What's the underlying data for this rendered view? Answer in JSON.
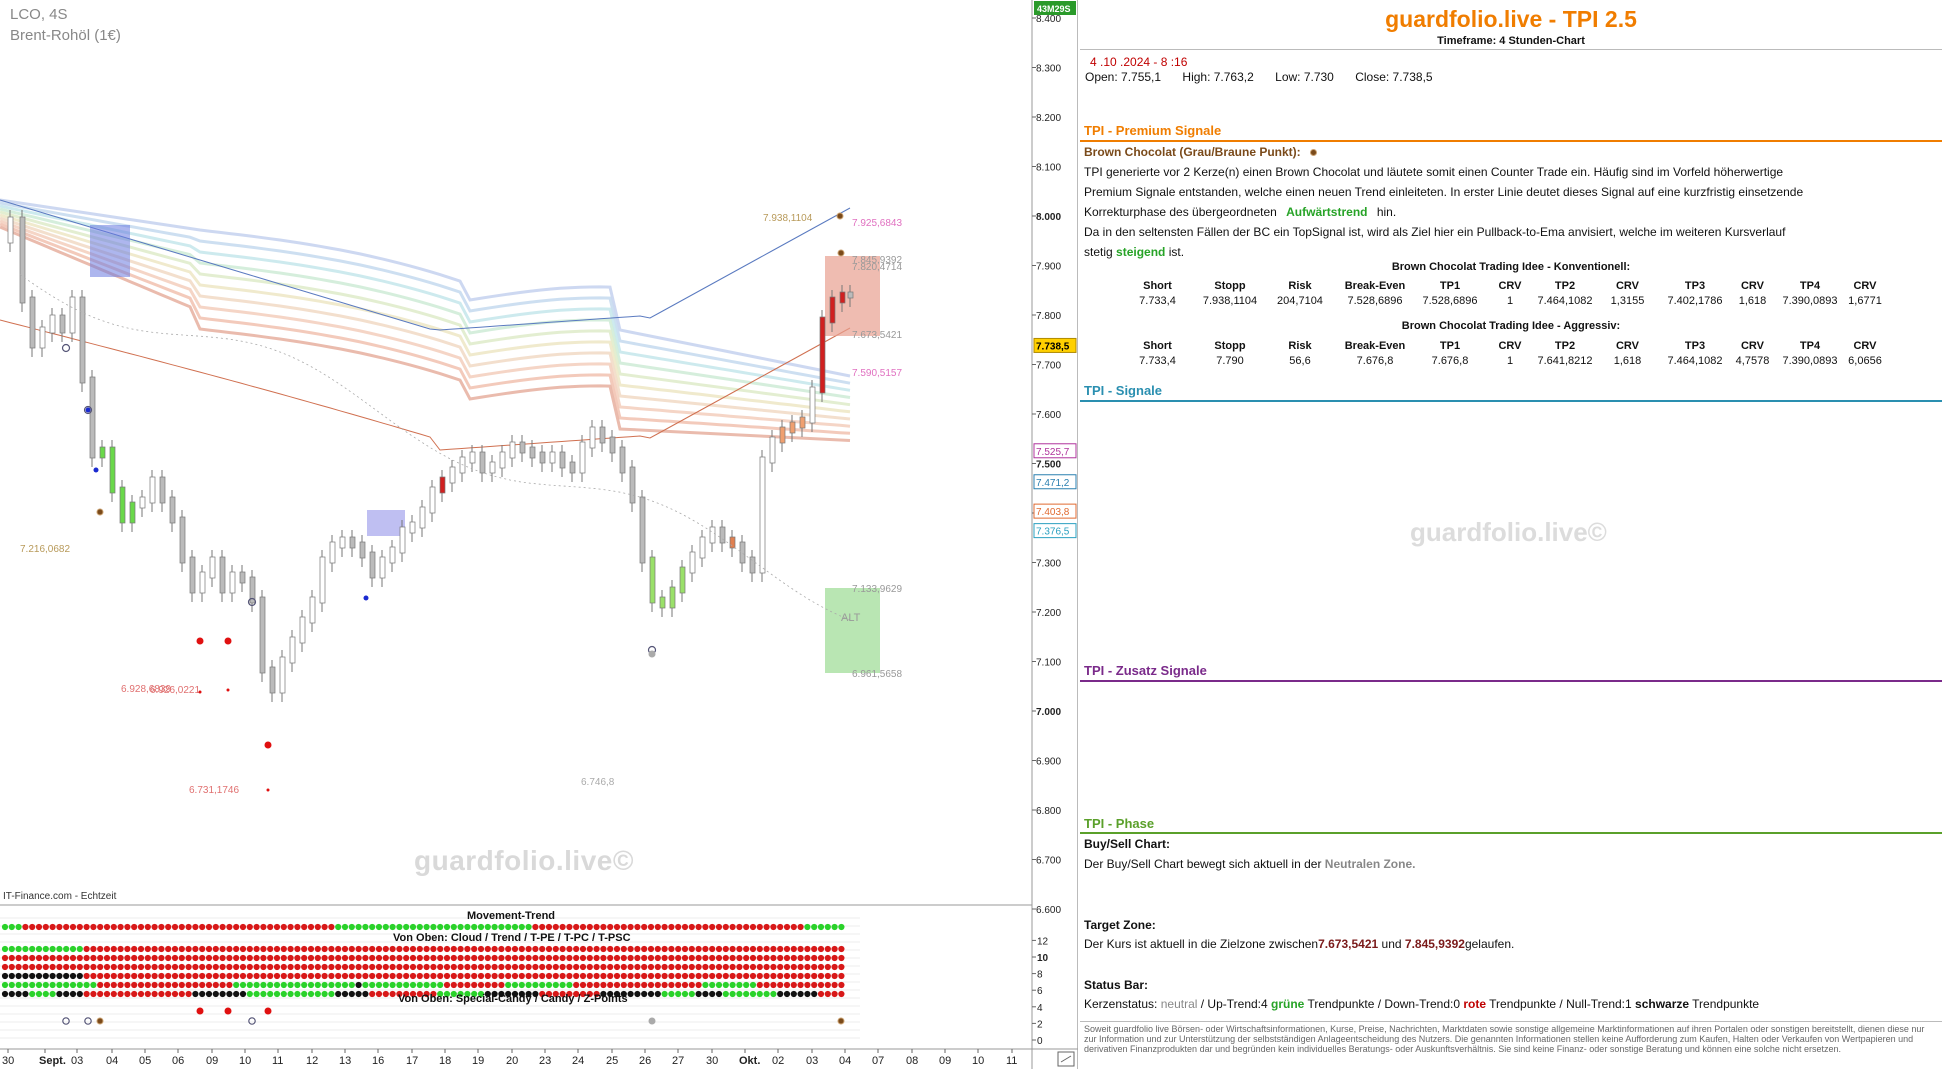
{
  "chart": {
    "symbol": "LCO, 4S",
    "name": "Brent-Rohöl (1€)",
    "countdown": "43M29S",
    "feed": "IT-Finance.com - Echtzeit",
    "watermark": "guardfolio.live©",
    "y_ticks": [
      "8.400",
      "8.300",
      "8.200",
      "8.100",
      "8.000",
      "7.900",
      "7.800",
      "7.700",
      "7.600",
      "7.500",
      "7.400",
      "7.300",
      "7.200",
      "7.100",
      "7.000",
      "6.900",
      "6.800",
      "6.700",
      "6.600"
    ],
    "x_ticks": [
      "30",
      "Sept.",
      "03",
      "04",
      "05",
      "06",
      "09",
      "10",
      "11",
      "12",
      "13",
      "16",
      "17",
      "18",
      "19",
      "20",
      "23",
      "24",
      "25",
      "26",
      "27",
      "30",
      "Okt.",
      "02",
      "03",
      "04",
      "07",
      "08",
      "09",
      "10",
      "11"
    ],
    "price_tags": [
      {
        "text": "7.738,5",
        "bg": "#ffd000",
        "fg": "#000"
      },
      {
        "text": "7.525,7",
        "bg": "#fff",
        "fg": "#b0349c"
      },
      {
        "text": "7.471,2",
        "bg": "#fff",
        "fg": "#2a7fb0"
      },
      {
        "text": "7.403,8",
        "bg": "#fff",
        "fg": "#e06a30"
      },
      {
        "text": "7.376,5",
        "bg": "#fff",
        "fg": "#2aa0c0"
      }
    ],
    "annotations": [
      {
        "text": "7.938,1104",
        "color": "#b89a5a"
      },
      {
        "text": "7.925,6843",
        "color": "#e070c0"
      },
      {
        "text": "7.845,9392",
        "color": "#999"
      },
      {
        "text": "7.820,4714",
        "color": "#999"
      },
      {
        "text": "7.673,5421",
        "color": "#999"
      },
      {
        "text": "7.590,5157",
        "color": "#e070c0"
      },
      {
        "text": "7.216,0682",
        "color": "#b89a5a"
      },
      {
        "text": "7.133,9629",
        "color": "#999"
      },
      {
        "text": "6.961,5658",
        "color": "#999"
      },
      {
        "text": "6.928,6839",
        "color": "#e07070"
      },
      {
        "text": "6.926,0221",
        "color": "#e07070"
      },
      {
        "text": "6.731,1746",
        "color": "#e07070"
      },
      {
        "text": "6.746,8",
        "color": "#aaa"
      },
      {
        "text": "ALT",
        "color": "#999"
      }
    ],
    "indicator": {
      "title_movement": "Movement-Trend",
      "title_cloud": "Von Oben: Cloud / Trend / T-PE / T-PC / T-PSC",
      "title_special": "Von Oben: Special-Candy / Candy / Z-Points",
      "y_ticks": [
        "12",
        "10",
        "8",
        "6",
        "4",
        "2",
        "0"
      ]
    }
  },
  "panel": {
    "brand": "guardfolio.live - TPI 2.5",
    "timeframe": "Timeframe: 4 Stunden-Chart",
    "date": "4 .10 .2024  - 8 :16",
    "open": "Open:  7.755,1",
    "high": "High:  7.763,2",
    "low": "Low:    7.730",
    "close": "Close:  7.738,5",
    "premium_title": "TPI - Premium Signale",
    "bc_label": "Brown Chocolat (Grau/Braune Punkt):",
    "bc_text1": "TPI generierte vor 2  Kerze(n) einen Brown Chocolat und läutete somit einen Counter Trade ein. Häufig sind im Vorfeld höherwertige",
    "bc_text2": "Premium Signale entstanden, welche einen neuen Trend einleiteten. In erster Linie deutet dieses Signal auf eine kurzfristig einsetzende",
    "bc_text3a": "Korrekturphase des übergeordneten",
    "bc_text3b": "Aufwärtstrend",
    "bc_text3c": "hin.",
    "bc_text4": "Da in den seltensten Fällen der BC ein TopSignal ist, wird als Ziel hier ein Pullback-to-Ema anvisiert, welche im weiteren Kursverlauf",
    "bc_text5a": "stetig",
    "bc_text5b": "steigend",
    "bc_text5c": "ist.",
    "tbl1_title": "Brown Chocolat Trading Idee - Konventionell:",
    "tbl2_title": "Brown Chocolat Trading Idee - Aggressiv:",
    "tbl_headers": [
      "Short",
      "Stopp",
      "Risk",
      "Break-Even",
      "TP1",
      "CRV",
      "TP2",
      "CRV",
      "TP3",
      "CRV",
      "TP4",
      "CRV"
    ],
    "tbl1_row": [
      "7.733,4",
      "7.938,1104",
      "204,7104",
      "7.528,6896",
      "7.528,6896",
      "1",
      "7.464,1082",
      "1,3155",
      "7.402,1786",
      "1,618",
      "7.390,0893",
      "1,6771"
    ],
    "tbl2_row": [
      "7.733,4",
      "7.790",
      "56,6",
      "7.676,8",
      "7.676,8",
      "1",
      "7.641,8212",
      "1,618",
      "7.464,1082",
      "4,7578",
      "7.390,0893",
      "6,0656"
    ],
    "signals_title": "TPI - Signale",
    "zusatz_title": "TPI - Zusatz Signale",
    "phase_title": "TPI - Phase",
    "buysell_label": "Buy/Sell Chart:",
    "buysell_text_a": "Der Buy/Sell Chart bewegt sich aktuell in der",
    "buysell_text_b": "Neutralen Zone.",
    "target_label": "Target Zone:",
    "target_text_a": "Der Kurs ist aktuell in die Zielzone zwischen",
    "target_val1": "7.673,5421",
    "target_text_b": "und",
    "target_val2": "7.845,9392",
    "target_text_c": "gelaufen.",
    "status_label": "Status Bar:",
    "status_a": "Kerzenstatus:",
    "status_neutral": "neutral",
    "status_b": " / Up-Trend:4",
    "status_green": "grüne",
    "status_c": "Trendpunkte  / Down-Trend:0",
    "status_red": "rote",
    "status_d": "Trendpunkte / Null-Trend:1",
    "status_black": "schwarze",
    "status_e": "Trendpunkte",
    "watermark": "guardfolio.live©",
    "disclaimer": "Soweit guardfolio live Börsen- oder Wirtschaftsinformationen, Kurse, Preise, Nachrichten, Marktdaten sowie sonstige allgemeine Marktinformationen auf ihren Portalen oder sonstigen bereitstellt, dienen diese nur zur Information und zur Unterstützung der selbstständigen Anlageentscheidung des Nutzers. Die genannten Informationen stellen keine Aufforderung zum Kaufen, Halten oder Verkaufen von Wertpapieren und derivativen Finanzprodukten dar und begründen kein individuelles Beratungs- oder Auskunftsverhältnis. Sie sind keine Finanz- oder sonstige Beratung und können eine solche nicht ersetzen.",
    "colors": {
      "orange": "#f07d00",
      "premium_rule": "#f07d00",
      "signals_rule": "#2a8fb0",
      "zusatz_rule": "#7a2a8a",
      "phase_rule": "#5aa02a",
      "green": "#27a327",
      "red": "#c00000",
      "brown": "#7a4a1a"
    }
  }
}
